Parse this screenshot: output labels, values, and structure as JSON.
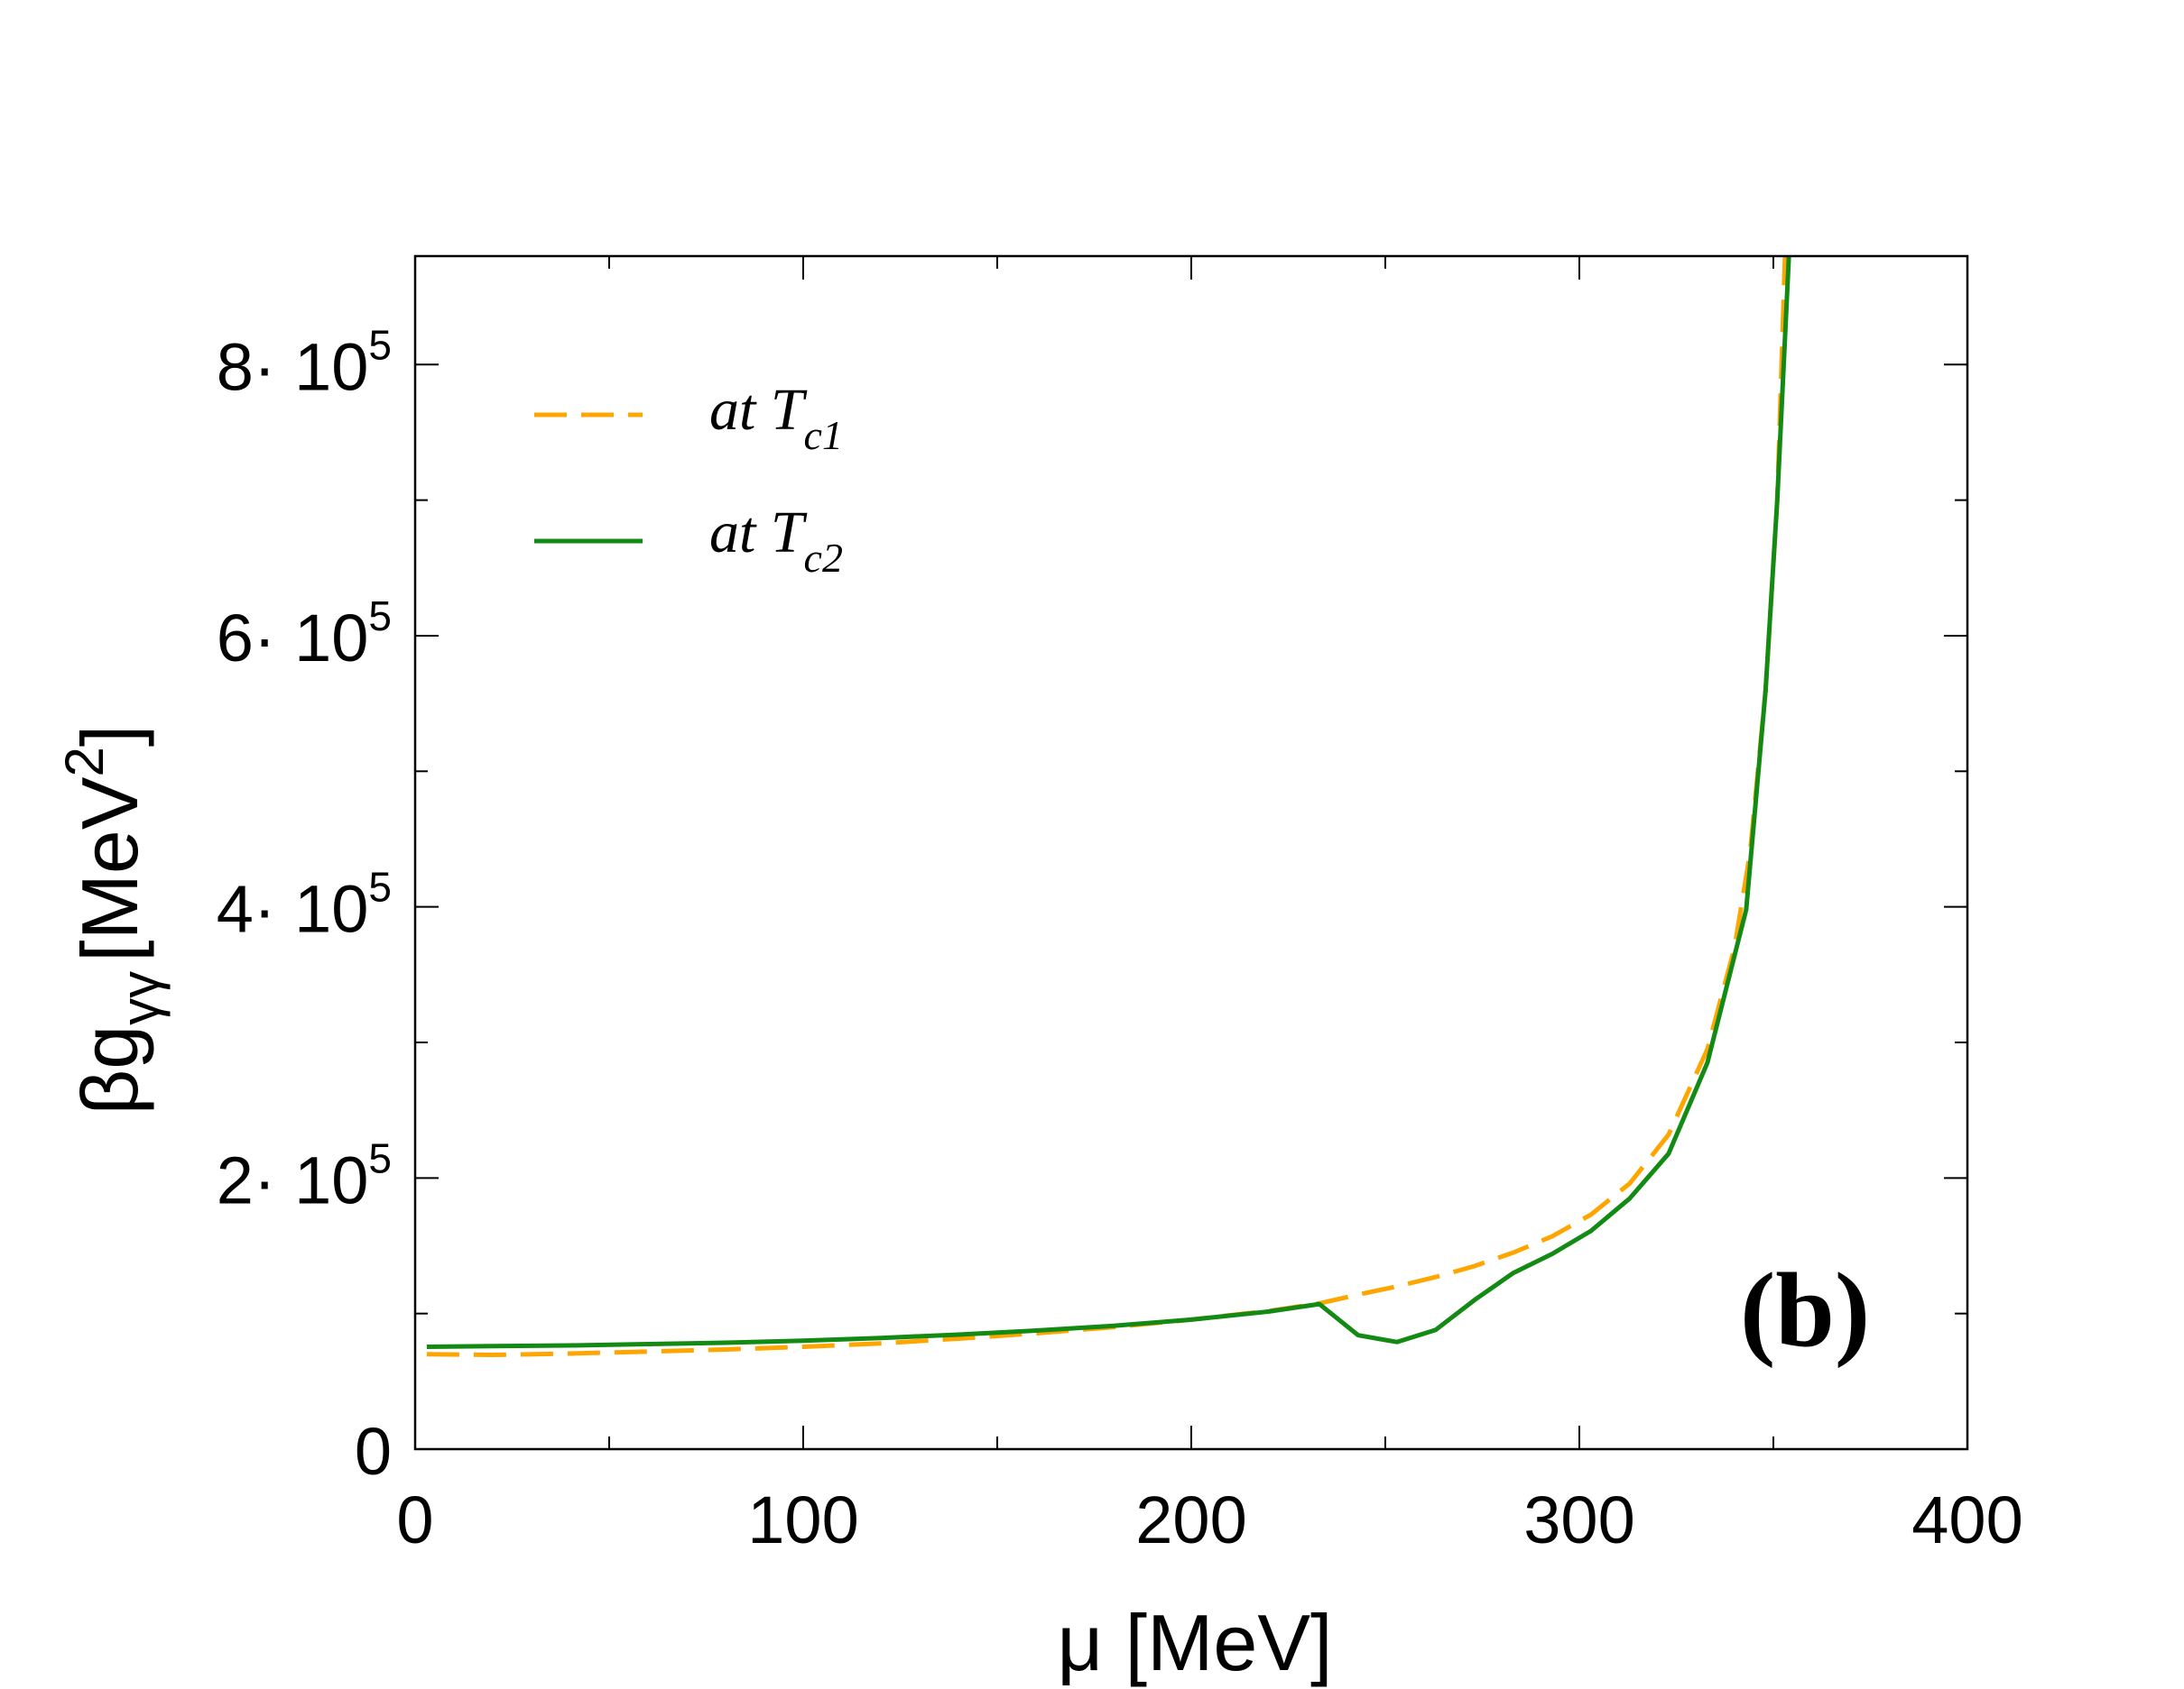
{
  "chart_data": {
    "type": "line",
    "title": "",
    "panel_label": "(b)",
    "xlabel": "μ [MeV]",
    "ylabel": {
      "base": "βg",
      "subscript": "γγ",
      "unit_open": "[MeV",
      "unit_power": "2",
      "unit_close": "]"
    },
    "xlim": [
      0,
      400
    ],
    "ylim": [
      0,
      880000
    ],
    "x_ticks": [
      0,
      100,
      200,
      300,
      400
    ],
    "x_tick_labels": [
      "0",
      "100",
      "200",
      "300",
      "400"
    ],
    "x_minor_ticks": [
      50,
      150,
      250,
      350
    ],
    "y_ticks": [
      0,
      200000,
      400000,
      600000,
      800000
    ],
    "y_tick_labels": [
      {
        "mantissa": "0",
        "exponent": ""
      },
      {
        "mantissa": "2· 10",
        "exponent": "5"
      },
      {
        "mantissa": "4· 10",
        "exponent": "5"
      },
      {
        "mantissa": "6· 10",
        "exponent": "5"
      },
      {
        "mantissa": "8· 10",
        "exponent": "5"
      }
    ],
    "y_minor_ticks": [
      100000,
      300000,
      500000,
      700000
    ],
    "legend_position": "top-left",
    "series": [
      {
        "name": "at T_c1",
        "legend_main": "at T",
        "legend_sub": "c1",
        "color": "#FFA500",
        "style": "dashed",
        "x": [
          3,
          20,
          40,
          60,
          80,
          100,
          120,
          140,
          160,
          180,
          200,
          220,
          233,
          243,
          253,
          263,
          273,
          283,
          293,
          303,
          313,
          323,
          333,
          340,
          344,
          348,
          351,
          353
        ],
        "y": [
          70000,
          69500,
          70500,
          72000,
          73500,
          75500,
          78000,
          81500,
          85500,
          90000,
          95500,
          102000,
          107500,
          114000,
          120000,
          127000,
          135000,
          145000,
          157000,
          173000,
          196000,
          232000,
          295000,
          370000,
          440000,
          560000,
          700000,
          880000
        ]
      },
      {
        "name": "at T_c2",
        "legend_main": "at T",
        "legend_sub": "c2",
        "color": "#138A13",
        "style": "solid",
        "x": [
          3,
          20,
          40,
          60,
          80,
          100,
          120,
          140,
          160,
          180,
          200,
          220,
          233,
          243,
          253,
          263,
          273,
          283,
          293,
          303,
          313,
          323,
          333,
          343,
          348,
          351,
          354
        ],
        "y": [
          75500,
          76000,
          76500,
          77500,
          78500,
          80000,
          82000,
          84500,
          87500,
          91000,
          95500,
          101500,
          107000,
          84000,
          79000,
          88000,
          110000,
          130000,
          144000,
          161000,
          185000,
          218000,
          285000,
          398000,
          560000,
          700000,
          880000
        ]
      }
    ]
  }
}
